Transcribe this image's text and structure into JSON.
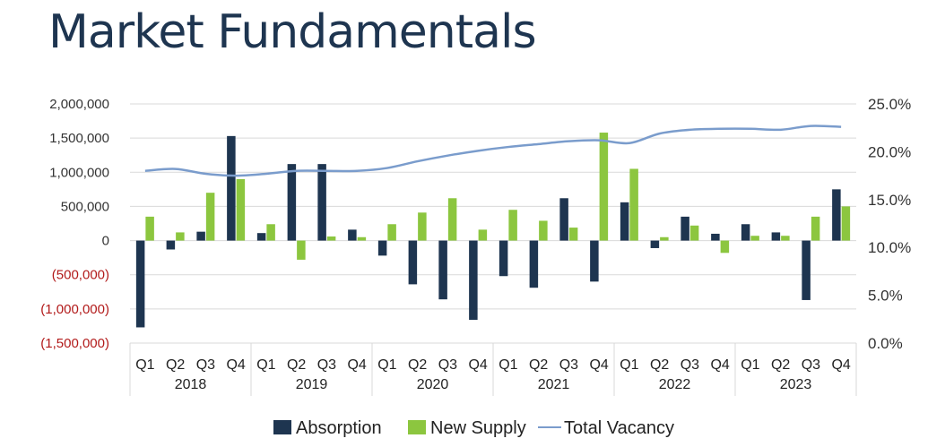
{
  "title": "Market Fundamentals",
  "colors": {
    "absorption": "#1e3550",
    "new_supply": "#8cc63f",
    "total_vacancy": "#7a9ccc",
    "negative_tick": "#b21a1a",
    "gridline": "#d9d9d9",
    "title": "#1e3550"
  },
  "chart_data": {
    "type": "bar",
    "title": "Market Fundamentals",
    "x": {
      "groups": [
        "2018",
        "2019",
        "2020",
        "2021",
        "2022",
        "2023"
      ],
      "quarters": [
        "Q1",
        "Q2",
        "Q3",
        "Q4"
      ]
    },
    "y_left": {
      "ylim": [
        -1500000,
        2000000
      ],
      "ticks": [
        2000000,
        1500000,
        1000000,
        500000,
        0,
        -500000,
        -1000000,
        -1500000
      ],
      "tick_labels": [
        "2,000,000",
        "1,500,000",
        "1,000,000",
        "500,000",
        "0",
        "(500,000)",
        "(1,000,000)",
        "(1,500,000)"
      ]
    },
    "y_right": {
      "ylim": [
        0,
        25
      ],
      "ticks": [
        25,
        20,
        15,
        10,
        5,
        0
      ],
      "tick_labels": [
        "25.0%",
        "20.0%",
        "15.0%",
        "10.0%",
        "5.0%",
        "0.0%"
      ]
    },
    "series": [
      {
        "name": "Absorption",
        "type": "bar",
        "values": [
          -1270000,
          -130000,
          130000,
          1530000,
          110000,
          1120000,
          1120000,
          160000,
          -220000,
          -640000,
          -860000,
          -1160000,
          -520000,
          -690000,
          620000,
          -600000,
          560000,
          -110000,
          350000,
          100000,
          240000,
          120000,
          -870000,
          750000
        ]
      },
      {
        "name": "New Supply",
        "type": "bar",
        "values": [
          350000,
          120000,
          700000,
          900000,
          240000,
          -280000,
          60000,
          50000,
          240000,
          410000,
          620000,
          160000,
          450000,
          290000,
          190000,
          1580000,
          1050000,
          50000,
          220000,
          -180000,
          70000,
          70000,
          350000,
          500000
        ]
      },
      {
        "name": "Total Vacancy",
        "type": "line",
        "axis": "right",
        "values": [
          18.0,
          18.2,
          17.7,
          17.5,
          17.7,
          18.0,
          18.0,
          18.0,
          18.3,
          19.0,
          19.6,
          20.1,
          20.5,
          20.8,
          21.1,
          21.2,
          20.9,
          21.9,
          22.3,
          22.4,
          22.4,
          22.3,
          22.7,
          22.6
        ]
      }
    ],
    "legend": [
      "Absorption",
      "New Supply",
      "Total Vacancy"
    ],
    "legend_position": "bottom",
    "grid": true
  }
}
